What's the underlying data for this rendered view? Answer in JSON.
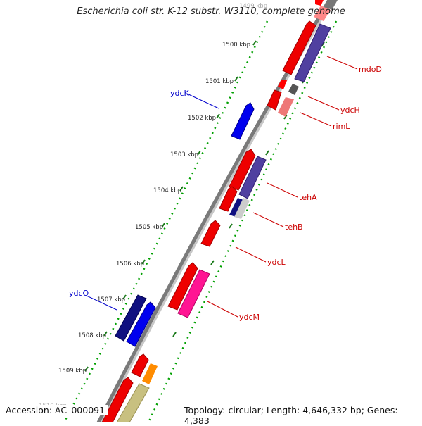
{
  "title": "Escherichia coli str. K-12 substr. W3110, complete genome",
  "footer": {
    "accession": "Accession: AC_000091",
    "topology": "Topology: circular; Length: 4,646,332 bp; Genes: 4,383"
  },
  "scale": {
    "ticks": [
      "1499 kbp",
      "1500 kbp",
      "1501 kbp",
      "1502 kbp",
      "1503 kbp",
      "1504 kbp",
      "1505 kbp",
      "1506 kbp",
      "1507 kbp",
      "1508 kbp",
      "1509 kbp",
      "1510 kbp"
    ]
  },
  "colors": {
    "backbone": "#808080",
    "scale_dots": "#00a000",
    "forward_label": "#0000cc",
    "reverse_label": "#cc0000"
  },
  "labels": {
    "mdoD": "mdoD",
    "ydcH": "ydcH",
    "rimL": "rimL",
    "ydcK": "ydcK",
    "tehA": "tehA",
    "tehB": "tehB",
    "ydcL": "ydcL",
    "ydcM": "ydcM",
    "ydcO": "ydcO"
  }
}
